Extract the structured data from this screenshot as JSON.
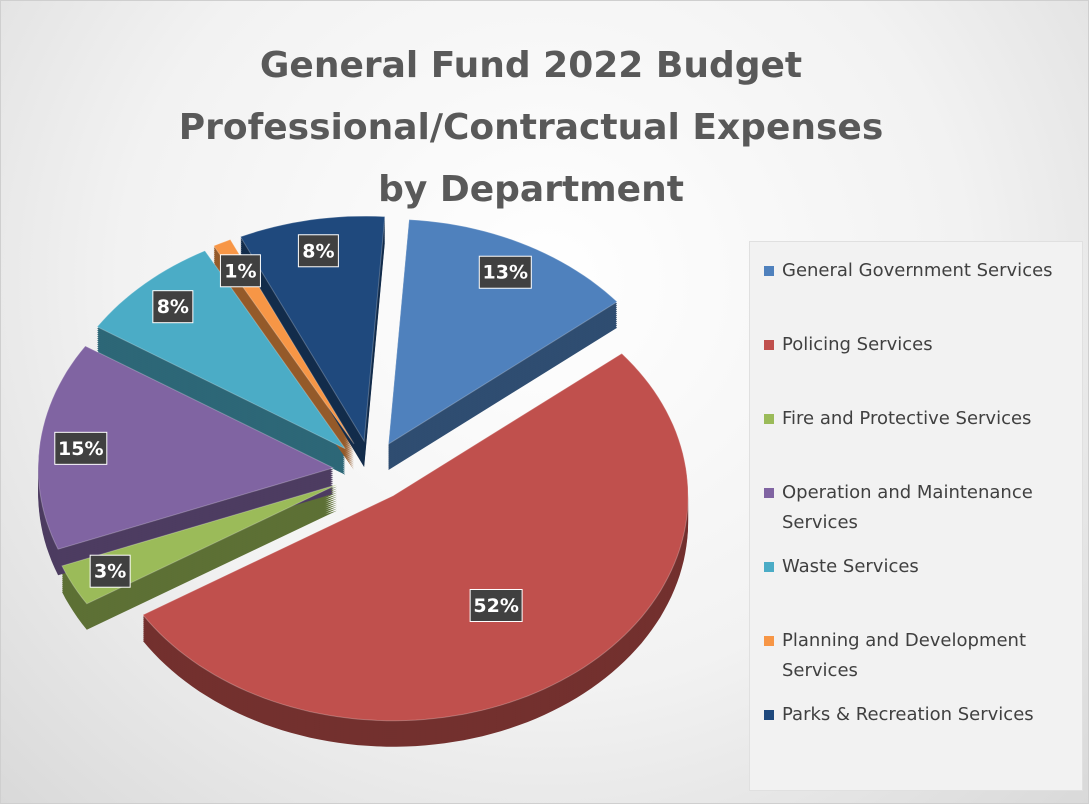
{
  "chart_data": {
    "type": "pie",
    "title": "General Fund 2022 Budget Professional/Contractual Expenses by Department",
    "categories": [
      "General Government Services",
      "Policing Services",
      "Fire and Protective Services",
      "Operation and Maintenance Services",
      "Waste Services",
      "Planning and Development Services",
      "Parks & Recreation Services"
    ],
    "values": [
      13,
      52,
      3,
      15,
      8,
      1,
      8
    ],
    "value_labels": [
      "13%",
      "52%",
      "3%",
      "15%",
      "8%",
      "1%",
      "8%"
    ],
    "colors": [
      "#4f81bd",
      "#c0504d",
      "#9bbb59",
      "#8064a2",
      "#4bacc6",
      "#f79646",
      "#1f497d"
    ],
    "legend": "right"
  }
}
